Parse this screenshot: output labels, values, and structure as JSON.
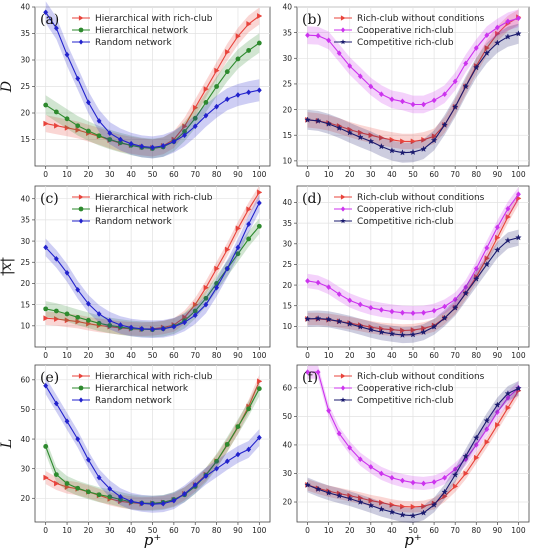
{
  "figure": {
    "xlabel": "p⁺"
  },
  "chart_data": [
    {
      "type": "line",
      "panel": "(a)",
      "ylabel": "D",
      "x": [
        0,
        5,
        10,
        15,
        20,
        25,
        30,
        35,
        40,
        45,
        50,
        55,
        60,
        65,
        70,
        75,
        80,
        85,
        90,
        95,
        100
      ],
      "xticks": [
        0,
        10,
        20,
        30,
        40,
        50,
        60,
        70,
        80,
        90,
        100
      ],
      "ylim": [
        10,
        40
      ],
      "yticks": [
        15,
        20,
        25,
        30,
        35,
        40
      ],
      "legend_position": "top",
      "series": [
        {
          "name": "Hierarchical with rich-club",
          "color": "#e8433b",
          "marker": "triangle",
          "values": [
            18,
            17.6,
            17.2,
            16.8,
            16.2,
            15.6,
            14.9,
            14.3,
            13.9,
            13.6,
            13.4,
            13.8,
            15.0,
            17.5,
            21,
            24.5,
            28,
            31.5,
            34.5,
            36.8,
            38.3
          ]
        },
        {
          "name": "Hierarchical network",
          "color": "#2e8a2e",
          "marker": "circle",
          "values": [
            21.5,
            20.2,
            18.9,
            17.6,
            16.6,
            15.7,
            15.0,
            14.4,
            13.9,
            13.5,
            13.3,
            13.6,
            14.6,
            16.5,
            19.0,
            22.0,
            25.0,
            27.8,
            30.2,
            31.8,
            33.2
          ]
        },
        {
          "name": "Random network",
          "color": "#2222cc",
          "marker": "diamond",
          "values": [
            39,
            36,
            31,
            26.5,
            22,
            18.5,
            16.2,
            15,
            14.2,
            13.7,
            13.5,
            13.8,
            14.6,
            15.8,
            17.5,
            19.5,
            21.2,
            22.6,
            23.4,
            23.9,
            24.3
          ]
        }
      ]
    },
    {
      "type": "line",
      "panel": "(b)",
      "ylabel": "",
      "x": [
        0,
        5,
        10,
        15,
        20,
        25,
        30,
        35,
        40,
        45,
        50,
        55,
        60,
        65,
        70,
        75,
        80,
        85,
        90,
        95,
        100
      ],
      "xticks": [
        0,
        10,
        20,
        30,
        40,
        50,
        60,
        70,
        80,
        90,
        100
      ],
      "ylim": [
        9,
        40
      ],
      "yticks": [
        10,
        15,
        20,
        25,
        30,
        35,
        40
      ],
      "legend_position": "top",
      "series": [
        {
          "name": "Rich-club without conditions",
          "color": "#e8433b",
          "marker": "triangle",
          "values": [
            18,
            17.8,
            17.4,
            16.8,
            16.1,
            15.5,
            15,
            14.5,
            14.1,
            13.8,
            13.8,
            14.1,
            14.8,
            17,
            20.5,
            24.5,
            28.5,
            32,
            34.8,
            36.8,
            38
          ]
        },
        {
          "name": "Cooperative rich-club",
          "color": "#cc33ee",
          "marker": "diamond",
          "values": [
            34.5,
            34.4,
            33.5,
            31,
            28.5,
            26.5,
            24.5,
            23,
            22,
            21.6,
            21,
            21,
            21.8,
            23,
            25.5,
            29,
            32,
            34.5,
            36,
            37.2,
            37.8
          ]
        },
        {
          "name": "Competitive rich-club",
          "color": "#1a1a6e",
          "marker": "star",
          "values": [
            18,
            17.8,
            17.2,
            16.4,
            15.5,
            14.6,
            13.8,
            12.8,
            12,
            11.6,
            11.7,
            12.3,
            14,
            17,
            20.5,
            24.5,
            28.2,
            31,
            33,
            34.2,
            34.8
          ]
        }
      ]
    },
    {
      "type": "line",
      "panel": "(c)",
      "ylabel": "|x|",
      "x": [
        0,
        5,
        10,
        15,
        20,
        25,
        30,
        35,
        40,
        45,
        50,
        55,
        60,
        65,
        70,
        75,
        80,
        85,
        90,
        95,
        100
      ],
      "xticks": [
        0,
        10,
        20,
        30,
        40,
        50,
        60,
        70,
        80,
        90,
        100
      ],
      "ylim": [
        5,
        43
      ],
      "yticks": [
        10,
        15,
        20,
        25,
        30,
        35,
        40
      ],
      "legend_position": "top",
      "series": [
        {
          "name": "Hierarchical with rich-club",
          "color": "#e8433b",
          "marker": "triangle",
          "values": [
            11.8,
            11.6,
            11.3,
            11,
            10.5,
            10.1,
            9.8,
            9.5,
            9.3,
            9.2,
            9.3,
            9.6,
            10.2,
            12,
            15,
            19,
            23.5,
            28,
            33,
            37.5,
            41.5
          ]
        },
        {
          "name": "Hierarchical network",
          "color": "#2e8a2e",
          "marker": "circle",
          "values": [
            14,
            13.5,
            12.8,
            12,
            11.3,
            10.6,
            10.1,
            9.7,
            9.4,
            9.2,
            9.1,
            9.3,
            9.9,
            11.2,
            13.5,
            16.5,
            20,
            23.5,
            27,
            30.5,
            33.5
          ]
        },
        {
          "name": "Random network",
          "color": "#2222cc",
          "marker": "diamond",
          "values": [
            28.5,
            25.8,
            22.5,
            18.5,
            15.2,
            12.8,
            11.2,
            10.2,
            9.6,
            9.3,
            9.2,
            9.3,
            9.8,
            10.8,
            12.5,
            15,
            19,
            23.5,
            28.5,
            34,
            39
          ]
        }
      ]
    },
    {
      "type": "line",
      "panel": "(d)",
      "ylabel": "",
      "x": [
        0,
        5,
        10,
        15,
        20,
        25,
        30,
        35,
        40,
        45,
        50,
        55,
        60,
        65,
        70,
        75,
        80,
        85,
        90,
        95,
        100
      ],
      "xticks": [
        0,
        10,
        20,
        30,
        40,
        50,
        60,
        70,
        80,
        90,
        100
      ],
      "ylim": [
        5,
        44
      ],
      "yticks": [
        10,
        15,
        20,
        25,
        30,
        35,
        40
      ],
      "legend_position": "top",
      "series": [
        {
          "name": "Rich-club without conditions",
          "color": "#e8433b",
          "marker": "triangle",
          "values": [
            11.8,
            11.8,
            11.6,
            11.2,
            10.8,
            10.3,
            9.8,
            9.4,
            9.2,
            9,
            9.1,
            9.5,
            10.2,
            12,
            14.5,
            18,
            22,
            26.5,
            31.5,
            36.5,
            41
          ]
        },
        {
          "name": "Cooperative rich-club",
          "color": "#cc33ee",
          "marker": "diamond",
          "values": [
            21,
            20.6,
            19.5,
            17.8,
            16.3,
            15.3,
            14.5,
            14,
            13.6,
            13.3,
            13.2,
            13.3,
            13.8,
            14.8,
            16.5,
            19.5,
            24,
            29,
            34,
            38.5,
            42
          ]
        },
        {
          "name": "Competitive rich-club",
          "color": "#1a1a6e",
          "marker": "star",
          "values": [
            11.8,
            11.9,
            11.7,
            11.2,
            10.6,
            9.9,
            9.2,
            8.6,
            8.2,
            7.9,
            8,
            8.6,
            9.9,
            12,
            14.5,
            18,
            21.5,
            25,
            28.5,
            30.8,
            31.5
          ]
        }
      ]
    },
    {
      "type": "line",
      "panel": "(e)",
      "ylabel": "L",
      "x": [
        0,
        5,
        10,
        15,
        20,
        25,
        30,
        35,
        40,
        45,
        50,
        55,
        60,
        65,
        70,
        75,
        80,
        85,
        90,
        95,
        100
      ],
      "xticks": [
        0,
        10,
        20,
        30,
        40,
        50,
        60,
        70,
        80,
        90,
        100
      ],
      "ylim": [
        12,
        65
      ],
      "yticks": [
        20,
        30,
        40,
        50,
        60
      ],
      "legend_position": "top",
      "series": [
        {
          "name": "Hierarchical with rich-club",
          "color": "#e8433b",
          "marker": "triangle",
          "values": [
            27,
            25,
            23.8,
            23.2,
            22.2,
            21,
            19.8,
            19,
            18.5,
            18.2,
            18.3,
            18.6,
            19.5,
            21.5,
            24.5,
            28,
            32.5,
            38,
            44,
            51,
            59.5
          ]
        },
        {
          "name": "Hierarchical network",
          "color": "#2e8a2e",
          "marker": "circle",
          "values": [
            37.5,
            28,
            25,
            23.4,
            22.2,
            21.2,
            20.5,
            19.6,
            18.8,
            18.4,
            18.3,
            18.6,
            19.6,
            21.2,
            24,
            27.8,
            32.5,
            38.2,
            44.2,
            50.2,
            57
          ]
        },
        {
          "name": "Random network",
          "color": "#2222cc",
          "marker": "diamond",
          "values": [
            58,
            52,
            46,
            40,
            33,
            27,
            23.2,
            20.5,
            19,
            18.3,
            18,
            18.2,
            19.2,
            21.5,
            24.5,
            27.5,
            30,
            32.5,
            34.8,
            36.5,
            40.5
          ]
        }
      ]
    },
    {
      "type": "line",
      "panel": "(f)",
      "ylabel": "",
      "x": [
        0,
        5,
        10,
        15,
        20,
        25,
        30,
        35,
        40,
        45,
        50,
        55,
        60,
        65,
        70,
        75,
        80,
        85,
        90,
        95,
        100
      ],
      "xticks": [
        0,
        10,
        20,
        30,
        40,
        50,
        60,
        70,
        80,
        90,
        100
      ],
      "ylim": [
        13,
        68
      ],
      "yticks": [
        20,
        30,
        40,
        50,
        60
      ],
      "legend_position": "top",
      "series": [
        {
          "name": "Rich-club without conditions",
          "color": "#e8433b",
          "marker": "triangle",
          "values": [
            26,
            24.8,
            23.8,
            23,
            22.2,
            21.4,
            20.5,
            19.8,
            19,
            18.4,
            18.3,
            18.5,
            19.5,
            22,
            25.5,
            30,
            35.5,
            41,
            47,
            53,
            59
          ]
        },
        {
          "name": "Cooperative rich-club",
          "color": "#cc33ee",
          "marker": "diamond",
          "values": [
            65.5,
            65.5,
            52,
            44,
            39,
            35,
            32.3,
            30,
            28.5,
            27.5,
            26.8,
            26.5,
            27,
            28.5,
            31.5,
            35,
            40,
            45.5,
            51.5,
            56.5,
            60
          ]
        },
        {
          "name": "Competitive rich-club",
          "color": "#1a1a6e",
          "marker": "star",
          "values": [
            26,
            24.5,
            23.2,
            22.2,
            21.2,
            20,
            18.8,
            17.5,
            16.5,
            15.5,
            15.2,
            16.2,
            19,
            23.5,
            29.5,
            36,
            42.5,
            48.5,
            54,
            58,
            59.8
          ]
        }
      ]
    }
  ]
}
